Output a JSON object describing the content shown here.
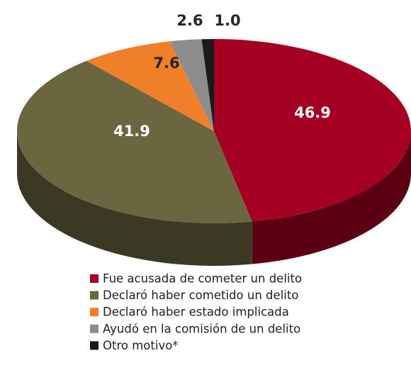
{
  "chart_data": {
    "type": "pie3d",
    "categories": [
      "Fue acusada de cometer un delito",
      "Declaró haber cometido un delito",
      "Declaró haber estado implicada",
      "Ayudó en la comisión de un delito",
      "Otro motivo*"
    ],
    "values": [
      46.9,
      41.9,
      7.6,
      2.6,
      1.0
    ],
    "value_labels": [
      "46.9",
      "41.9",
      "7.6",
      "2.6",
      "1.0"
    ],
    "colors": [
      "#a50021",
      "#6b6640",
      "#f07f2a",
      "#8c8c8c",
      "#1a1a1a"
    ],
    "legend": "bottom"
  }
}
